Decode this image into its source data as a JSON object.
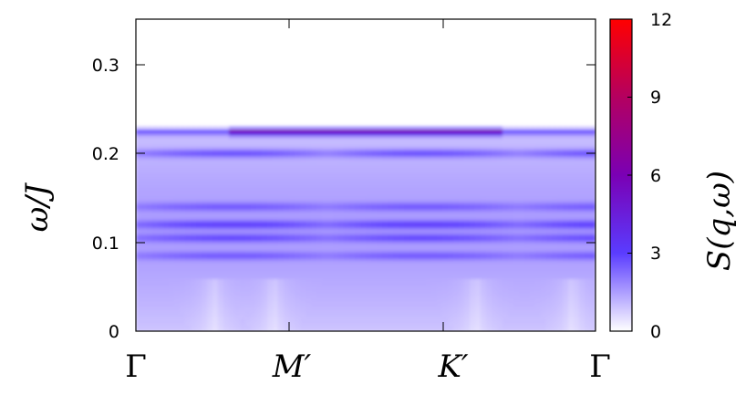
{
  "chart_data": {
    "type": "heatmap",
    "title": "",
    "xlabel": "",
    "ylabel": "ω/J",
    "x_ticks": [
      "Γ",
      "M′",
      "K′",
      "Γ"
    ],
    "y_ticks": [
      "0",
      "0.1",
      "0.2",
      "0.3"
    ],
    "ylim": [
      0,
      0.35
    ],
    "colorbar": {
      "label": "S(q,ω)",
      "range": [
        0,
        12
      ],
      "ticks": [
        "0",
        "3",
        "6",
        "9",
        "12"
      ],
      "colors": [
        "#ffffff",
        "#5a3cff",
        "#7a00b4",
        "#b40060",
        "#ff0000"
      ]
    },
    "grid": false,
    "bands": [
      {
        "omega": 0.225,
        "max_intensity": 9
      },
      {
        "omega": 0.2,
        "max_intensity": 3.5
      },
      {
        "omega": 0.14,
        "max_intensity": 2.5
      },
      {
        "omega": 0.12,
        "max_intensity": 3.5
      },
      {
        "omega": 0.105,
        "max_intensity": 3
      },
      {
        "omega": 0.085,
        "max_intensity": 2.5
      }
    ],
    "spectrum_top": 0.23
  }
}
